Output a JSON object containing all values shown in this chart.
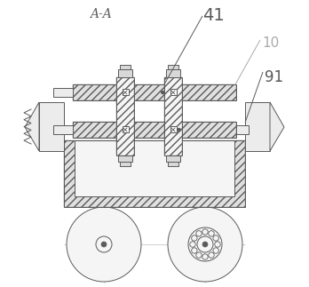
{
  "bg_color": "#ffffff",
  "line_color": "#5a5a5a",
  "gray_label": "#aaaaaa",
  "title_text": "A-A",
  "label_41": "41",
  "label_10": "10",
  "label_91": "91",
  "fig_width": 3.48,
  "fig_height": 3.23,
  "dpi": 100,
  "hatch_fc": "#e0e0e0",
  "base_fc": "#d8d8d8",
  "inner_fc": "#f5f5f5",
  "rail_fc": "#ececec"
}
